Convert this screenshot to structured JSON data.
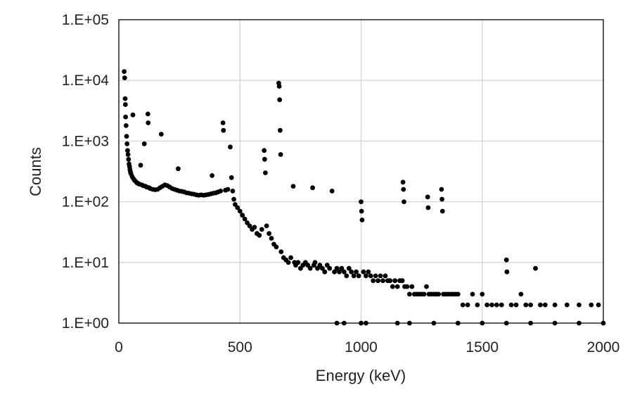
{
  "chart_data": {
    "type": "scatter",
    "title": "",
    "xlabel": "Energy (keV)",
    "ylabel": "Counts",
    "xlim": [
      0,
      2000
    ],
    "ylim": [
      1,
      100000
    ],
    "y_scale": "log",
    "x_ticks": [
      "0",
      "500",
      "1000",
      "1500",
      "2000"
    ],
    "y_ticks": [
      "1.E+00",
      "1.E+01",
      "1.E+02",
      "1.E+03",
      "1.E+04",
      "1.E+05"
    ],
    "grid": true,
    "legend": "none",
    "marker_color": "#000000",
    "series": [
      {
        "points": [
          [
            22,
            14000
          ],
          [
            24,
            11000
          ],
          [
            26,
            5000
          ],
          [
            27,
            4000
          ],
          [
            28,
            2500
          ],
          [
            30,
            1800
          ],
          [
            32,
            1200
          ],
          [
            34,
            900
          ],
          [
            36,
            700
          ],
          [
            38,
            600
          ],
          [
            40,
            500
          ],
          [
            42,
            420
          ],
          [
            44,
            380
          ],
          [
            46,
            340
          ],
          [
            48,
            310
          ],
          [
            50,
            290
          ],
          [
            55,
            260
          ],
          [
            58,
            2700
          ],
          [
            60,
            240
          ],
          [
            65,
            225
          ],
          [
            70,
            215
          ],
          [
            75,
            205
          ],
          [
            80,
            200
          ],
          [
            85,
            195
          ],
          [
            90,
            400
          ],
          [
            95,
            190
          ],
          [
            100,
            185
          ],
          [
            105,
            900
          ],
          [
            110,
            180
          ],
          [
            115,
            175
          ],
          [
            120,
            2800
          ],
          [
            121,
            2000
          ],
          [
            125,
            170
          ],
          [
            130,
            165
          ],
          [
            140,
            160
          ],
          [
            150,
            158
          ],
          [
            160,
            160
          ],
          [
            170,
            170
          ],
          [
            175,
            1300
          ],
          [
            180,
            180
          ],
          [
            190,
            190
          ],
          [
            200,
            185
          ],
          [
            210,
            175
          ],
          [
            220,
            165
          ],
          [
            230,
            160
          ],
          [
            240,
            155
          ],
          [
            245,
            350
          ],
          [
            250,
            150
          ],
          [
            260,
            148
          ],
          [
            270,
            145
          ],
          [
            280,
            140
          ],
          [
            290,
            138
          ],
          [
            300,
            135
          ],
          [
            310,
            133
          ],
          [
            320,
            130
          ],
          [
            330,
            128
          ],
          [
            340,
            130
          ],
          [
            350,
            128
          ],
          [
            360,
            130
          ],
          [
            370,
            132
          ],
          [
            380,
            135
          ],
          [
            385,
            270
          ],
          [
            390,
            138
          ],
          [
            400,
            140
          ],
          [
            410,
            145
          ],
          [
            420,
            150
          ],
          [
            430,
            2000
          ],
          [
            432,
            1500
          ],
          [
            440,
            155
          ],
          [
            450,
            160
          ],
          [
            460,
            800
          ],
          [
            465,
            250
          ],
          [
            470,
            150
          ],
          [
            475,
            110
          ],
          [
            480,
            90
          ],
          [
            490,
            80
          ],
          [
            500,
            70
          ],
          [
            510,
            60
          ],
          [
            520,
            52
          ],
          [
            530,
            45
          ],
          [
            540,
            40
          ],
          [
            550,
            35
          ],
          [
            560,
            38
          ],
          [
            570,
            30
          ],
          [
            580,
            28
          ],
          [
            590,
            35
          ],
          [
            600,
            700
          ],
          [
            602,
            500
          ],
          [
            605,
            300
          ],
          [
            610,
            40
          ],
          [
            620,
            30
          ],
          [
            630,
            25
          ],
          [
            640,
            20
          ],
          [
            650,
            18
          ],
          [
            660,
            9000
          ],
          [
            662,
            8000
          ],
          [
            664,
            4800
          ],
          [
            666,
            1500
          ],
          [
            668,
            600
          ],
          [
            670,
            15
          ],
          [
            680,
            12
          ],
          [
            690,
            11
          ],
          [
            700,
            10
          ],
          [
            710,
            12
          ],
          [
            720,
            180
          ],
          [
            725,
            10
          ],
          [
            730,
            9
          ],
          [
            740,
            10
          ],
          [
            750,
            8
          ],
          [
            760,
            9
          ],
          [
            770,
            10
          ],
          [
            780,
            9
          ],
          [
            790,
            8
          ],
          [
            800,
            170
          ],
          [
            805,
            9
          ],
          [
            810,
            10
          ],
          [
            820,
            8
          ],
          [
            830,
            9
          ],
          [
            840,
            8
          ],
          [
            850,
            7
          ],
          [
            860,
            9
          ],
          [
            870,
            8
          ],
          [
            880,
            150
          ],
          [
            890,
            7
          ],
          [
            900,
            8
          ],
          [
            910,
            7
          ],
          [
            920,
            8
          ],
          [
            930,
            7
          ],
          [
            940,
            6
          ],
          [
            950,
            8
          ],
          [
            960,
            7
          ],
          [
            970,
            6
          ],
          [
            980,
            7
          ],
          [
            990,
            6
          ],
          [
            1000,
            100
          ],
          [
            1002,
            70
          ],
          [
            1004,
            50
          ],
          [
            1010,
            7
          ],
          [
            1020,
            6
          ],
          [
            1030,
            7
          ],
          [
            1040,
            6
          ],
          [
            1050,
            5
          ],
          [
            1060,
            6
          ],
          [
            1070,
            5
          ],
          [
            1080,
            6
          ],
          [
            1090,
            5
          ],
          [
            1100,
            6
          ],
          [
            1110,
            5
          ],
          [
            1120,
            5
          ],
          [
            1130,
            4
          ],
          [
            1140,
            5
          ],
          [
            1150,
            4
          ],
          [
            1160,
            5
          ],
          [
            1170,
            5
          ],
          [
            1173,
            210
          ],
          [
            1175,
            160
          ],
          [
            1177,
            100
          ],
          [
            1180,
            4
          ],
          [
            1190,
            4
          ],
          [
            1200,
            3
          ],
          [
            1210,
            4
          ],
          [
            1220,
            3
          ],
          [
            1230,
            3
          ],
          [
            1240,
            3
          ],
          [
            1250,
            3
          ],
          [
            1260,
            3
          ],
          [
            1270,
            4
          ],
          [
            1275,
            120
          ],
          [
            1277,
            80
          ],
          [
            1280,
            3
          ],
          [
            1290,
            3
          ],
          [
            1300,
            3
          ],
          [
            1310,
            3
          ],
          [
            1320,
            3
          ],
          [
            1332,
            160
          ],
          [
            1334,
            110
          ],
          [
            1336,
            70
          ],
          [
            1340,
            3
          ],
          [
            1350,
            3
          ],
          [
            1360,
            3
          ],
          [
            1370,
            3
          ],
          [
            1380,
            3
          ],
          [
            1390,
            3
          ],
          [
            1400,
            3
          ],
          [
            1420,
            2
          ],
          [
            1440,
            2
          ],
          [
            1460,
            3
          ],
          [
            1480,
            2
          ],
          [
            1500,
            3
          ],
          [
            1520,
            2
          ],
          [
            1540,
            2
          ],
          [
            1560,
            2
          ],
          [
            1580,
            2
          ],
          [
            1600,
            11
          ],
          [
            1602,
            7
          ],
          [
            1620,
            2
          ],
          [
            1640,
            2
          ],
          [
            1660,
            3
          ],
          [
            1680,
            2
          ],
          [
            1700,
            2
          ],
          [
            1720,
            8
          ],
          [
            1740,
            2
          ],
          [
            1760,
            2
          ],
          [
            1800,
            2
          ],
          [
            1850,
            2
          ],
          [
            1900,
            2
          ],
          [
            1950,
            2
          ],
          [
            1980,
            2
          ],
          [
            900,
            1
          ],
          [
            930,
            1
          ],
          [
            1000,
            1
          ],
          [
            1020,
            1
          ],
          [
            1150,
            1
          ],
          [
            1200,
            1
          ],
          [
            1300,
            1
          ],
          [
            1400,
            1
          ],
          [
            1500,
            1
          ],
          [
            1600,
            1
          ],
          [
            1700,
            1
          ],
          [
            1800,
            1
          ],
          [
            1900,
            1
          ],
          [
            2000,
            1
          ]
        ]
      }
    ]
  }
}
